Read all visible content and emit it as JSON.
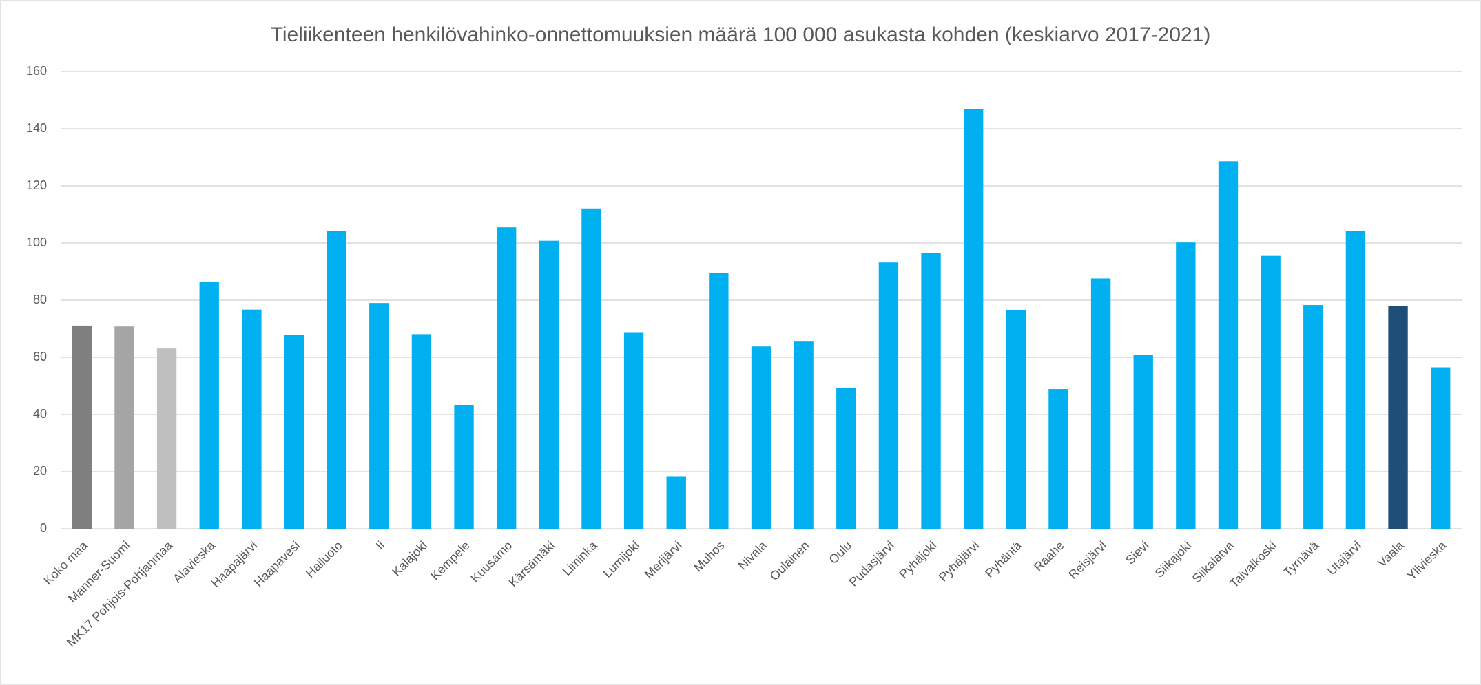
{
  "chart_data": {
    "type": "bar",
    "title": "Tieliikenteen henkilövahinko-onnettomuuksien määrä 100 000 asukasta kohden (keskiarvo 2017-2021)",
    "categories": [
      "Koko maa",
      "Manner-Suomi",
      "MK17 Pohjois-Pohjanmaa",
      "Alavieska",
      "Haapajärvi",
      "Haapavesi",
      "Hailuoto",
      "Ii",
      "Kalajoki",
      "Kempele",
      "Kuusamo",
      "Kärsämäki",
      "Liminka",
      "Lumijoki",
      "Merijärvi",
      "Muhos",
      "Nivala",
      "Oulainen",
      "Oulu",
      "Pudasjärvi",
      "Pyhäjoki",
      "Pyhäjärvi",
      "Pyhäntä",
      "Raahe",
      "Reisjärvi",
      "Sievi",
      "Siikajoki",
      "Siikalatva",
      "Taivalkoski",
      "Tyrnävä",
      "Utajärvi",
      "Vaala",
      "Ylivieska"
    ],
    "values": [
      71.1,
      70.8,
      63.1,
      86.3,
      76.7,
      67.8,
      104.1,
      79,
      68.1,
      43.3,
      105.5,
      100.8,
      112.1,
      68.8,
      18.2,
      89.6,
      63.8,
      65.5,
      49.3,
      93.2,
      96.5,
      146.8,
      76.4,
      48.9,
      87.6,
      60.8,
      100.2,
      128.6,
      95.5,
      78.3,
      104.1,
      78,
      56.5
    ],
    "colors": [
      "#7f7f7f",
      "#a5a5a5",
      "#bfbfbf",
      "#00b0f0",
      "#00b0f0",
      "#00b0f0",
      "#00b0f0",
      "#00b0f0",
      "#00b0f0",
      "#00b0f0",
      "#00b0f0",
      "#00b0f0",
      "#00b0f0",
      "#00b0f0",
      "#00b0f0",
      "#00b0f0",
      "#00b0f0",
      "#00b0f0",
      "#00b0f0",
      "#00b0f0",
      "#00b0f0",
      "#00b0f0",
      "#00b0f0",
      "#00b0f0",
      "#00b0f0",
      "#00b0f0",
      "#00b0f0",
      "#00b0f0",
      "#00b0f0",
      "#00b0f0",
      "#00b0f0",
      "#1f4e79",
      "#00b0f0"
    ],
    "ylim": [
      0,
      160
    ],
    "yticks": [
      0,
      20,
      40,
      60,
      80,
      100,
      120,
      140,
      160
    ],
    "grid": true
  }
}
